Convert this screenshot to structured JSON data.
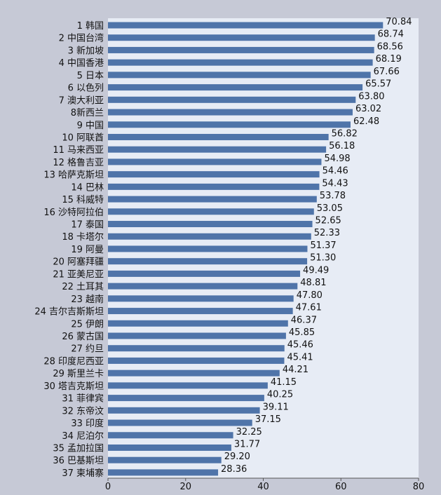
{
  "chart_data": {
    "type": "bar",
    "orientation": "horizontal",
    "categories": [
      "1 韩国",
      "2 中国台湾",
      "3 新加坡",
      "4 中国香港",
      "5 日本",
      "6 以色列",
      "7 澳大利亚",
      "8新西兰",
      "9 中国",
      "10 阿联酋",
      "11 马来西亚",
      "12 格鲁吉亚",
      "13 哈萨克斯坦",
      "14 巴林",
      "15 科威特",
      "16 沙特阿拉伯",
      "17 泰国",
      "18 卡塔尔",
      "19 阿曼",
      "20 阿塞拜疆",
      "21 亚美尼亚",
      "22 土耳其",
      "23 越南",
      "24 吉尔吉斯斯坦",
      "25 伊朗",
      "26 蒙古国",
      "27 约旦",
      "28 印度尼西亚",
      "29 斯里兰卡",
      "30 塔吉克斯坦",
      "31 菲律宾",
      "32 东帝汶",
      "33 印度",
      "34 尼泊尔",
      "35 孟加拉国",
      "36 巴基斯坦",
      "37 柬埔寨"
    ],
    "values": [
      70.84,
      68.74,
      68.56,
      68.19,
      67.66,
      65.57,
      63.8,
      63.02,
      62.48,
      56.82,
      56.18,
      54.98,
      54.46,
      54.43,
      53.78,
      53.05,
      52.65,
      52.33,
      51.37,
      51.3,
      49.49,
      48.81,
      47.8,
      47.61,
      46.37,
      45.85,
      45.46,
      45.41,
      44.21,
      41.15,
      40.25,
      39.11,
      37.15,
      32.25,
      31.77,
      29.2,
      28.36
    ],
    "value_labels": [
      "70.84",
      "68.74",
      "68.56",
      "68.19",
      "67.66",
      "65.57",
      "63.80",
      "63.02",
      "62.48",
      "56.82",
      "56.18",
      "54.98",
      "54.46",
      "54.43",
      "53.78",
      "53.05",
      "52.65",
      "52.33",
      "51.37",
      "51.30",
      "49.49",
      "48.81",
      "47.80",
      "47.61",
      "46.37",
      "45.85",
      "45.46",
      "45.41",
      "44.21",
      "41.15",
      "40.25",
      "39.11",
      "37.15",
      "32.25",
      "31.77",
      "29.20",
      "28.36"
    ],
    "x_ticks": [
      "0",
      "20",
      "40",
      "60",
      "80"
    ],
    "xlim": [
      0,
      80
    ],
    "title": "",
    "xlabel": "",
    "ylabel": "",
    "grid": false,
    "colors": {
      "bar": "#4f74a9",
      "plot_bg": "#e7ecf5",
      "page_bg": "#c6c9d6"
    }
  }
}
